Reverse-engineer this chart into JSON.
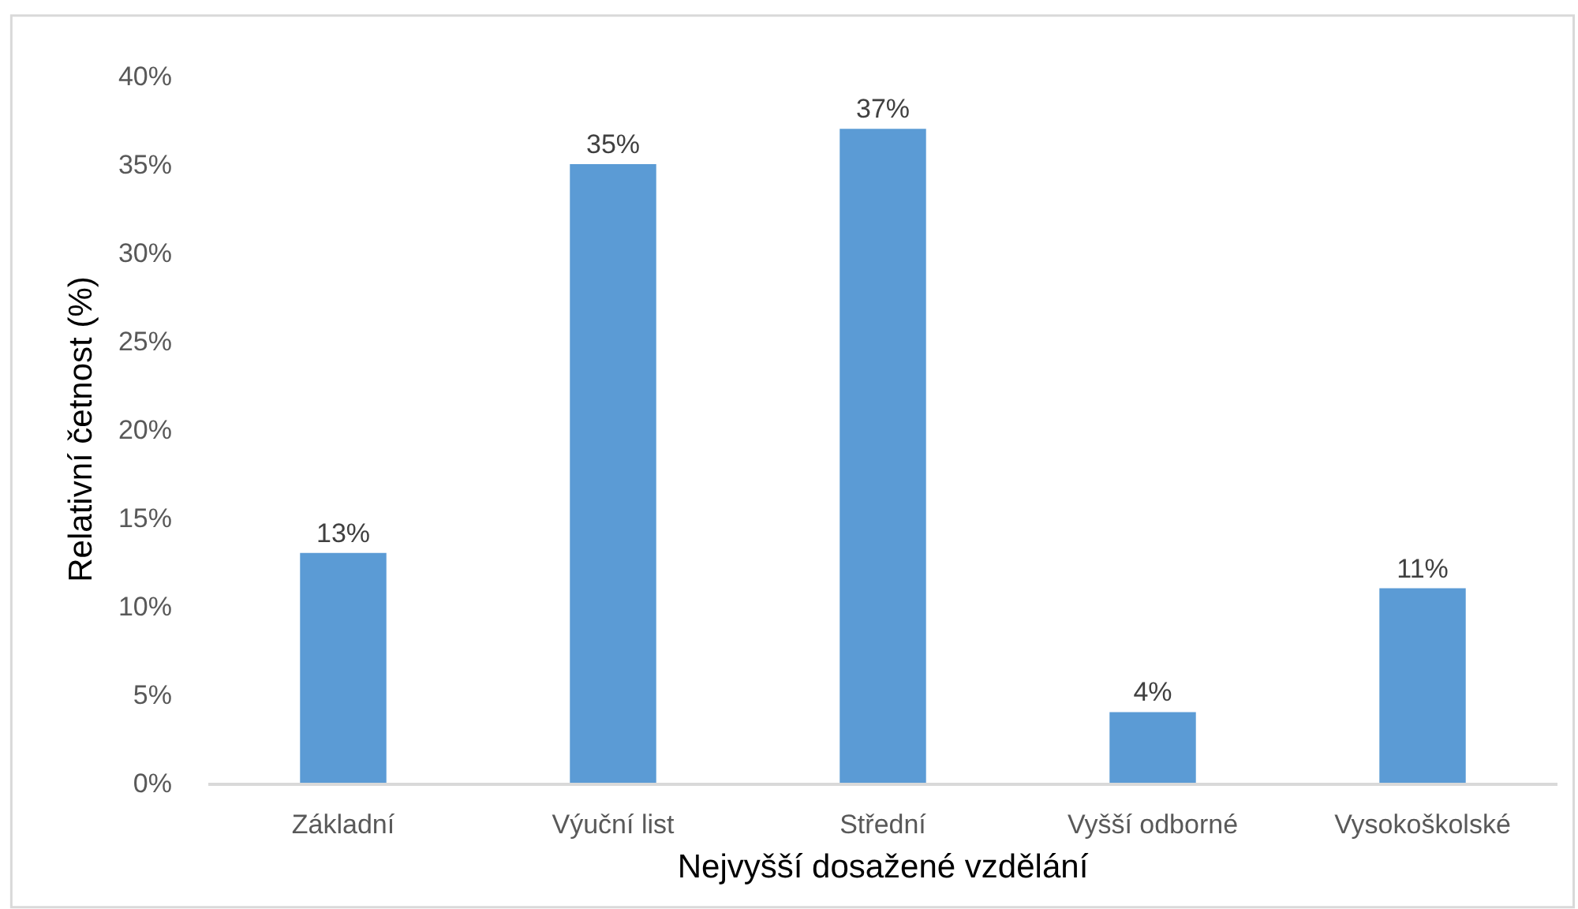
{
  "chart_data": {
    "type": "bar",
    "xlabel": "Nejvyšší dosažené vzdělání",
    "ylabel": "Relativní četnost (%)",
    "categories": [
      "Základní",
      "Výuční list",
      "Střední",
      "Vyšší odborné",
      "Vysokoškolské"
    ],
    "values": [
      13,
      35,
      37,
      4,
      11
    ],
    "color": "#5b9bd5",
    "value_labels": [
      "13%",
      "35%",
      "37%",
      "4%",
      "11%"
    ],
    "ylim": [
      0,
      40
    ],
    "yticks": [
      {
        "value": 0,
        "label": "0%"
      },
      {
        "value": 5,
        "label": "5%"
      },
      {
        "value": 10,
        "label": "10%"
      },
      {
        "value": 15,
        "label": "15%"
      },
      {
        "value": 20,
        "label": "20%"
      },
      {
        "value": 25,
        "label": "25%"
      },
      {
        "value": 30,
        "label": "30%"
      },
      {
        "value": 35,
        "label": "35%"
      },
      {
        "value": 40,
        "label": "40%"
      }
    ]
  }
}
